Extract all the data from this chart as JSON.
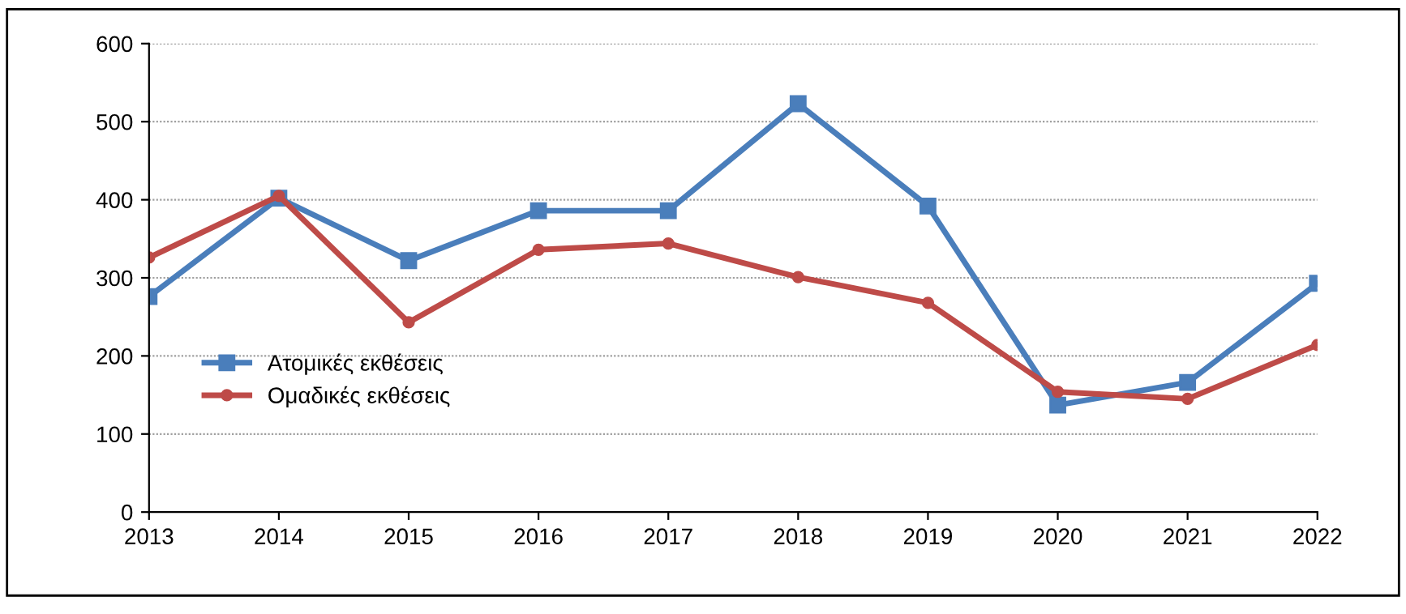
{
  "chart_data": {
    "type": "line",
    "x": [
      2013,
      2014,
      2015,
      2016,
      2017,
      2018,
      2019,
      2020,
      2021,
      2022
    ],
    "series": [
      {
        "name": "Ατομικές εκθέσεις",
        "color": "#4a7ebb",
        "marker": "square",
        "values": [
          276,
          402,
          322,
          386,
          386,
          523,
          392,
          137,
          166,
          293
        ]
      },
      {
        "name": "Ομαδικές εκθέσεις",
        "color": "#be4b48",
        "marker": "circle",
        "values": [
          326,
          405,
          243,
          336,
          344,
          301,
          268,
          154,
          145,
          214
        ]
      }
    ],
    "xlim": [
      2013,
      2022
    ],
    "xticks": [
      2013,
      2014,
      2015,
      2016,
      2017,
      2018,
      2019,
      2020,
      2021,
      2022
    ],
    "ylim": [
      0,
      600
    ],
    "yticks": [
      0,
      100,
      200,
      300,
      400,
      500,
      600
    ],
    "grid": "y",
    "legend": "left",
    "line_style": "solid"
  }
}
